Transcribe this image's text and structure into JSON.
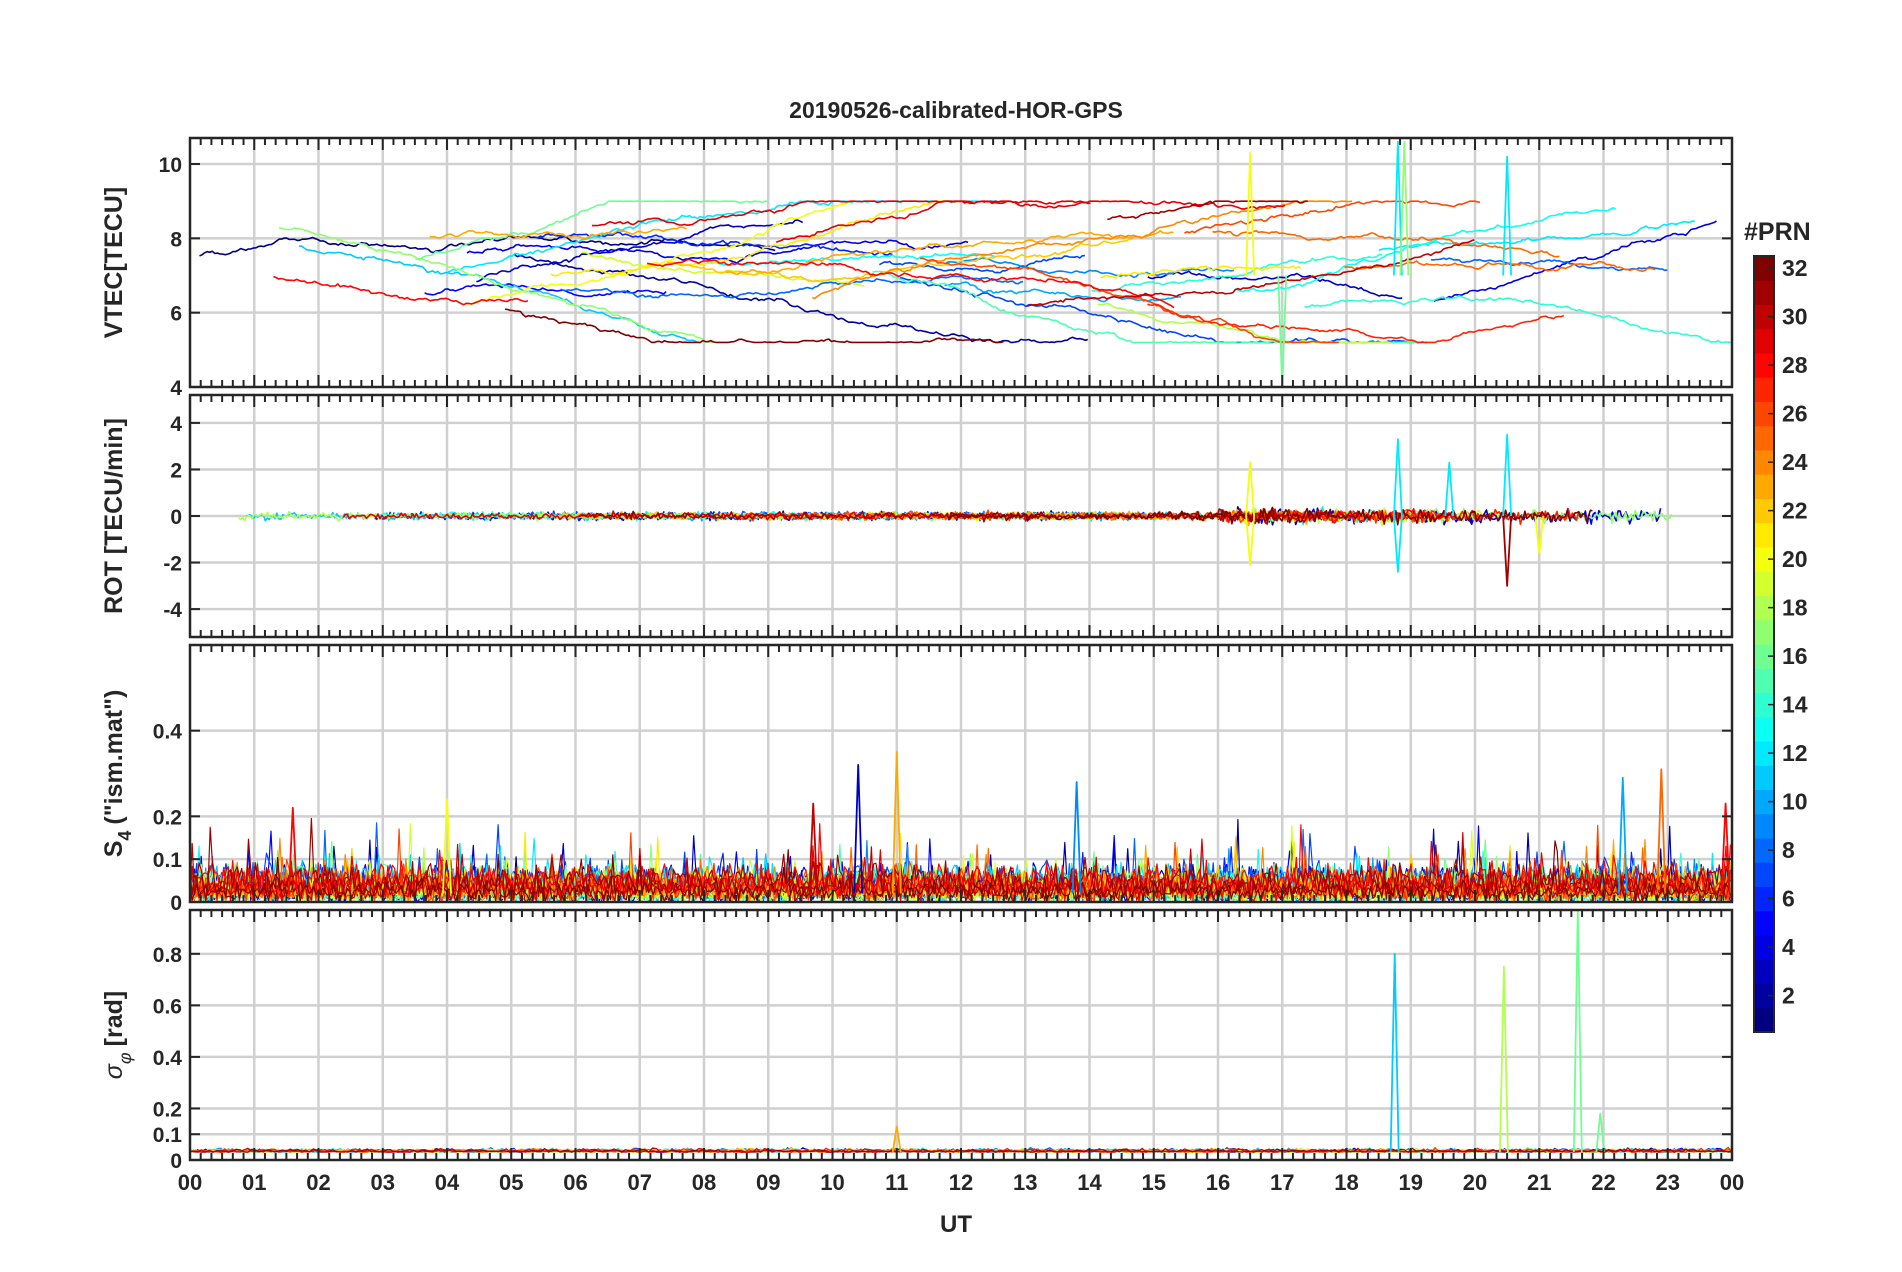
{
  "title": "20190526-calibrated-HOR-GPS",
  "xlabel": "UT",
  "x_ticks": [
    "00",
    "01",
    "02",
    "03",
    "04",
    "05",
    "06",
    "07",
    "08",
    "09",
    "10",
    "11",
    "12",
    "13",
    "14",
    "15",
    "16",
    "17",
    "18",
    "19",
    "20",
    "21",
    "22",
    "23",
    "00"
  ],
  "colorbar": {
    "title": "#PRN",
    "min": 1,
    "max": 32,
    "ticks": [
      "2",
      "4",
      "6",
      "8",
      "10",
      "12",
      "14",
      "16",
      "18",
      "20",
      "22",
      "24",
      "26",
      "28",
      "30",
      "32"
    ],
    "colormap": "jet",
    "colors": [
      "#00008f",
      "#0000ff",
      "#0080ff",
      "#00ffff",
      "#80ff80",
      "#ffff00",
      "#ff8000",
      "#ff0000",
      "#800000"
    ]
  },
  "chart_data": [
    {
      "type": "line",
      "panel": "VTEC",
      "ylabel": "VTEC[TECU]",
      "xlim": [
        0,
        24
      ],
      "ylim": [
        4,
        10.7
      ],
      "yticks": [
        "4",
        "6",
        "8",
        "10"
      ],
      "ytick_values": [
        4,
        6,
        8,
        10
      ],
      "description_of_series": "one trace per GPS PRN 1-32, colored by PRN",
      "typical_range": [
        5.2,
        9.0
      ],
      "spikes": [
        {
          "x": 16.5,
          "y": 10.3,
          "prn": 20
        },
        {
          "x": 18.8,
          "y": 10.6,
          "prn": 12
        },
        {
          "x": 18.9,
          "y": 10.6,
          "prn": 17
        },
        {
          "x": 20.5,
          "y": 10.2,
          "prn": 12
        },
        {
          "x": 17.0,
          "y": 4.0,
          "prn": 16
        }
      ]
    },
    {
      "type": "line",
      "panel": "ROT",
      "ylabel": "ROT [TECU/min]",
      "xlim": [
        0,
        24
      ],
      "ylim": [
        -5.2,
        5.2
      ],
      "yticks": [
        "-4",
        "-2",
        "0",
        "2",
        "4"
      ],
      "ytick_values": [
        -4,
        -2,
        0,
        2,
        4
      ],
      "baseline": 0,
      "typical_amplitude": 0.3,
      "spikes": [
        {
          "x": 16.5,
          "y": 2.3,
          "prn": 20
        },
        {
          "x": 16.5,
          "y": -2.1,
          "prn": 20
        },
        {
          "x": 18.8,
          "y": 3.3,
          "prn": 12
        },
        {
          "x": 18.8,
          "y": -2.4,
          "prn": 12
        },
        {
          "x": 19.6,
          "y": 2.3,
          "prn": 12
        },
        {
          "x": 20.5,
          "y": 3.5,
          "prn": 12
        },
        {
          "x": 20.5,
          "y": -3.0,
          "prn": 31
        },
        {
          "x": 21.0,
          "y": -1.6,
          "prn": 20
        }
      ]
    },
    {
      "type": "line",
      "panel": "S4",
      "ylabel": "S₄ (\"ism.mat\")",
      "ylabel_main": "S",
      "ylabel_sub": "4",
      "ylabel_rest": "(\"ism.mat\")",
      "xlim": [
        0,
        24
      ],
      "ylim": [
        0,
        0.6
      ],
      "yticks": [
        "0",
        "0.1",
        "0.2",
        "0.4"
      ],
      "ytick_values": [
        0,
        0.1,
        0.2,
        0.4
      ],
      "typical_range": [
        0.0,
        0.1
      ],
      "peaks": [
        {
          "x": 1.6,
          "y": 0.22,
          "prn": 28
        },
        {
          "x": 4.0,
          "y": 0.24,
          "prn": 20
        },
        {
          "x": 9.7,
          "y": 0.23,
          "prn": 30
        },
        {
          "x": 10.4,
          "y": 0.32,
          "prn": 3
        },
        {
          "x": 11.0,
          "y": 0.35,
          "prn": 23
        },
        {
          "x": 13.8,
          "y": 0.28,
          "prn": 9
        },
        {
          "x": 22.3,
          "y": 0.29,
          "prn": 10
        },
        {
          "x": 22.9,
          "y": 0.31,
          "prn": 25
        },
        {
          "x": 23.9,
          "y": 0.23,
          "prn": 28
        }
      ]
    },
    {
      "type": "line",
      "panel": "sigma_phi",
      "ylabel": "σφ[rad]",
      "ylabel_main": "σ",
      "ylabel_sub": "φ",
      "ylabel_rest": "[rad]",
      "xlim": [
        0,
        24
      ],
      "ylim": [
        0,
        0.97
      ],
      "yticks": [
        "0",
        "0.1",
        "0.2",
        "0.4",
        "0.6",
        "0.8"
      ],
      "ytick_values": [
        0,
        0.1,
        0.2,
        0.4,
        0.6,
        0.8
      ],
      "baseline": 0.03,
      "spikes": [
        {
          "x": 18.75,
          "y": 0.8,
          "prn": 11
        },
        {
          "x": 20.45,
          "y": 0.75,
          "prn": 18
        },
        {
          "x": 21.6,
          "y": 0.97,
          "prn": 16
        },
        {
          "x": 21.95,
          "y": 0.18,
          "prn": 16
        },
        {
          "x": 11.0,
          "y": 0.13,
          "prn": 23
        }
      ]
    }
  ]
}
